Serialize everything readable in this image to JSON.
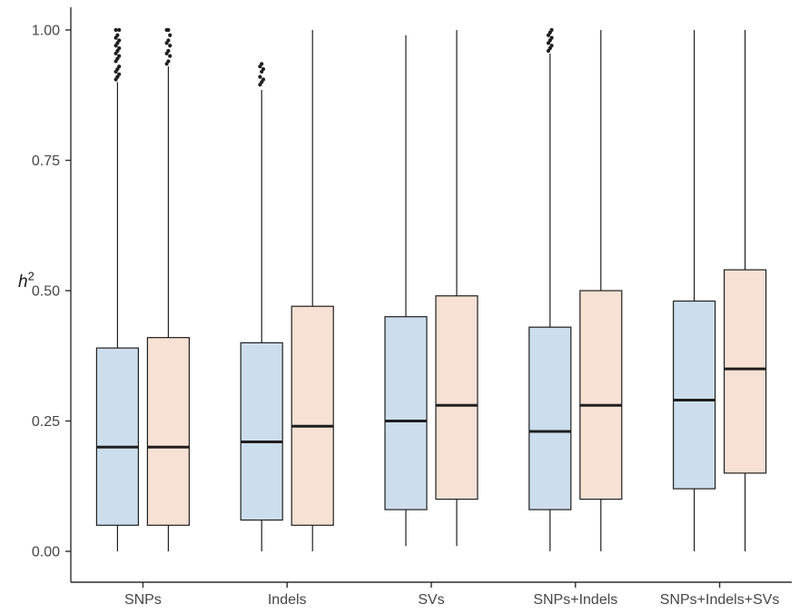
{
  "figure": {
    "background": "#ffffff",
    "axis_color": "#2e2e2e",
    "text_color": "#464646",
    "box_stroke_color": "#1f1f1f",
    "median_color": "#1f1f1f",
    "outlier_color": "#1f1f1f"
  },
  "chart_data": {
    "type": "boxplot",
    "title": "",
    "xlabel": "",
    "ylabel_base": "h",
    "ylabel_exponent": "2",
    "ylim": [
      0,
      1
    ],
    "grid": false,
    "legend_position": "none",
    "yticks": [
      {
        "value": 0.0,
        "label": "0.00"
      },
      {
        "value": 0.25,
        "label": "0.25"
      },
      {
        "value": 0.5,
        "label": "0.50"
      },
      {
        "value": 0.75,
        "label": "0.75"
      },
      {
        "value": 1.0,
        "label": "1.00"
      }
    ],
    "categories": [
      "SNPs",
      "Indels",
      "SVs",
      "SNPs+Indels",
      "SNPs+Indels+SVs"
    ],
    "series": [
      {
        "name": "left-blue",
        "color": "#CCDEED",
        "boxes": [
          {
            "category": "SNPs",
            "low": 0.0,
            "q1": 0.05,
            "median": 0.2,
            "q3": 0.39,
            "high": 0.9,
            "outliers": [
              0.905,
              0.91,
              0.915,
              0.92,
              0.925,
              0.93,
              0.94,
              0.945,
              0.95,
              0.955,
              0.96,
              0.965,
              0.97,
              0.975,
              0.98,
              0.985,
              0.99,
              1.0,
              1.0
            ]
          },
          {
            "category": "Indels",
            "low": 0.0,
            "q1": 0.06,
            "median": 0.21,
            "q3": 0.4,
            "high": 0.885,
            "outliers": [
              0.895,
              0.9,
              0.905,
              0.91,
              0.92,
              0.925,
              0.93,
              0.935
            ]
          },
          {
            "category": "SVs",
            "low": 0.01,
            "q1": 0.08,
            "median": 0.25,
            "q3": 0.45,
            "high": 0.99,
            "outliers": []
          },
          {
            "category": "SNPs+Indels",
            "low": 0.0,
            "q1": 0.08,
            "median": 0.23,
            "q3": 0.43,
            "high": 0.955,
            "outliers": [
              0.96,
              0.965,
              0.97,
              0.975,
              0.98,
              0.985,
              0.99,
              0.995,
              1.0
            ]
          },
          {
            "category": "SNPs+Indels+SVs",
            "low": 0.0,
            "q1": 0.12,
            "median": 0.29,
            "q3": 0.48,
            "high": 1.0,
            "outliers": []
          }
        ]
      },
      {
        "name": "right-peach",
        "color": "#F6E1D4",
        "boxes": [
          {
            "category": "SNPs",
            "low": 0.0,
            "q1": 0.05,
            "median": 0.2,
            "q3": 0.41,
            "high": 0.93,
            "outliers": [
              0.935,
              0.94,
              0.95,
              0.955,
              0.96,
              0.97,
              0.975,
              0.98,
              0.99,
              1.0,
              1.0
            ]
          },
          {
            "category": "Indels",
            "low": 0.0,
            "q1": 0.05,
            "median": 0.24,
            "q3": 0.47,
            "high": 1.0,
            "outliers": []
          },
          {
            "category": "SVs",
            "low": 0.01,
            "q1": 0.1,
            "median": 0.28,
            "q3": 0.49,
            "high": 1.0,
            "outliers": []
          },
          {
            "category": "SNPs+Indels",
            "low": 0.0,
            "q1": 0.1,
            "median": 0.28,
            "q3": 0.5,
            "high": 1.0,
            "outliers": []
          },
          {
            "category": "SNPs+Indels+SVs",
            "low": 0.0,
            "q1": 0.15,
            "median": 0.35,
            "q3": 0.54,
            "high": 1.0,
            "outliers": []
          }
        ]
      }
    ]
  }
}
